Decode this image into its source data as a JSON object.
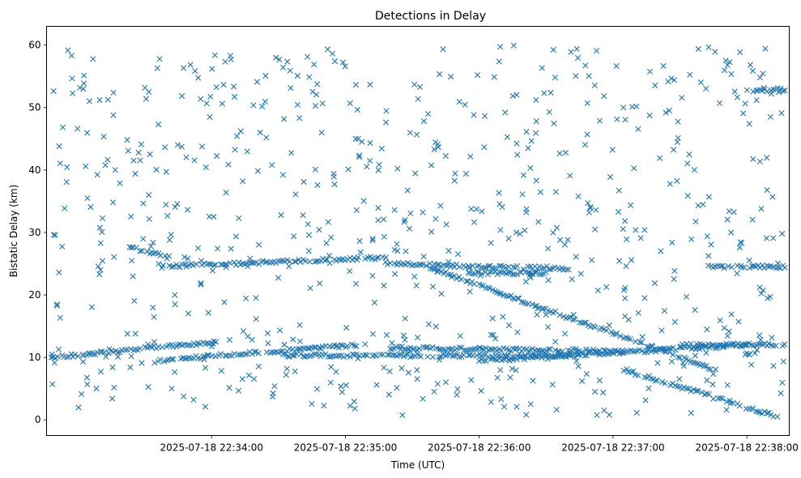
{
  "chart_data": {
    "type": "scatter",
    "title": "Detections in Delay",
    "xlabel": "Time (UTC)",
    "ylabel": "Bistatic Delay (km)",
    "x_tick_labels": [
      "2025-07-18 22:34:00",
      "2025-07-18 22:35:00",
      "2025-07-18 22:36:00",
      "2025-07-18 22:37:00",
      "2025-07-18 22:38:00"
    ],
    "x_ticks_seconds": [
      60,
      120,
      180,
      240,
      300
    ],
    "xlim_seconds": [
      -14,
      319
    ],
    "y_ticks": [
      0,
      10,
      20,
      30,
      40,
      50,
      60
    ],
    "ylim": [
      -2.5,
      63
    ],
    "marker": "x",
    "color": "#1f77b4",
    "grid": false,
    "tracks": [
      {
        "t_start": 23,
        "t_end": 41,
        "delay_start": 27.6,
        "delay_end": 26.0
      },
      {
        "t_start": 41,
        "t_end": 138,
        "delay_start": 24.6,
        "delay_end": 26.0
      },
      {
        "t_start": 138,
        "t_end": 220,
        "delay_start": 25.0,
        "delay_end": 24.2
      },
      {
        "t_start": 158,
        "t_end": 286,
        "delay_start": 24.3,
        "delay_end": 8.0
      },
      {
        "t_start": 245,
        "t_end": 312,
        "delay_start": 8.0,
        "delay_end": 0.7
      },
      {
        "t_start": -12,
        "t_end": 62,
        "delay_start": 10.0,
        "delay_end": 12.5
      },
      {
        "t_start": 36,
        "t_end": 125,
        "delay_start": 9.5,
        "delay_end": 12.0
      },
      {
        "t_start": 92,
        "t_end": 225,
        "delay_start": 10.3,
        "delay_end": 10.3
      },
      {
        "t_start": 140,
        "t_end": 245,
        "delay_start": 11.5,
        "delay_end": 11.0
      },
      {
        "t_start": 180,
        "t_end": 300,
        "delay_start": 9.5,
        "delay_end": 12.0
      },
      {
        "t_start": 270,
        "t_end": 317,
        "delay_start": 12.0,
        "delay_end": 12.0
      },
      {
        "t_start": 175,
        "t_end": 210,
        "delay_start": 23.5,
        "delay_end": 23.5
      },
      {
        "t_start": 283,
        "t_end": 317,
        "delay_start": 24.5,
        "delay_end": 24.5
      },
      {
        "t_start": 300,
        "t_end": 317,
        "delay_start": 52.8,
        "delay_end": 52.6
      }
    ],
    "clutter": {
      "count": 700,
      "t_range": [
        -12,
        317
      ],
      "delay_range": [
        0.5,
        60
      ]
    }
  }
}
